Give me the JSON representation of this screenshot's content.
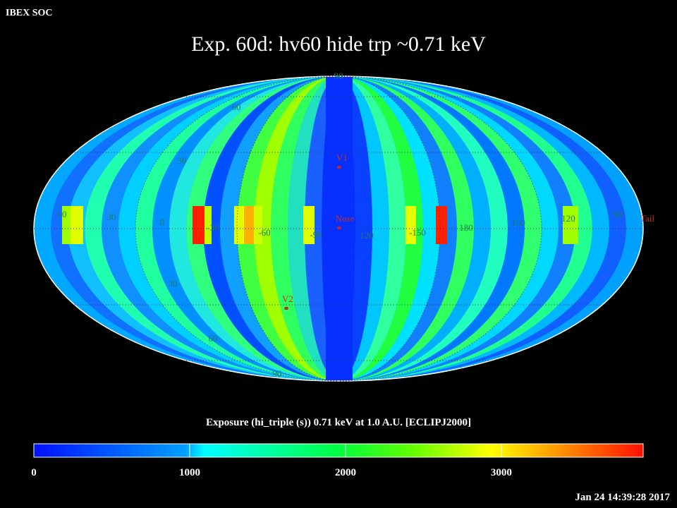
{
  "header": {
    "source": "IBEX SOC",
    "title": "Exp.   60d: hv60 hide trp ~0.71 keV",
    "timestamp": "Jan 24 14:39:28 2017"
  },
  "map": {
    "grid_labels": [
      "90",
      "60",
      "30",
      "60",
      "30",
      "0",
      "-30",
      "-60",
      "-90",
      "120",
      "-150",
      "180",
      "150",
      "120",
      "90",
      "30",
      "60",
      "90"
    ],
    "markers": [
      "V1",
      "Nose",
      "Tail",
      "V2"
    ]
  },
  "colorbar": {
    "caption": "Exposure (hi_triple (s))  0.71 keV at 1.0 A.U. [ECLIPJ2000]",
    "range": [
      0,
      3910
    ],
    "ticks": [
      0,
      1000,
      2000,
      3000
    ]
  }
}
